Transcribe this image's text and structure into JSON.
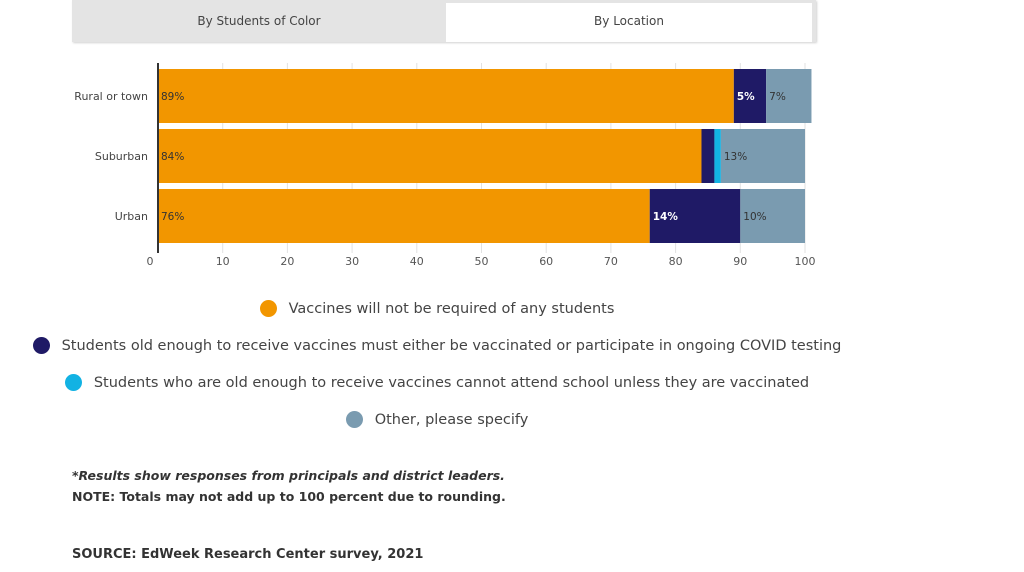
{
  "tabs": [
    {
      "label": "By Students of Color",
      "active": false
    },
    {
      "label": "By Location",
      "active": true
    }
  ],
  "chart_data": {
    "type": "bar",
    "orientation": "horizontal",
    "stacked": true,
    "categories": [
      "Rural or town",
      "Suburban",
      "Urban"
    ],
    "series": [
      {
        "name": "Vaccines will not be required of any students",
        "color": "#F29600",
        "values": [
          89,
          84,
          76
        ],
        "labels": [
          "89%",
          "84%",
          "76%"
        ]
      },
      {
        "name": "Students old enough to receive vaccines must either be vaccinated or participate in ongoing COVID testing",
        "color": "#1F1A66",
        "values": [
          5,
          2,
          14
        ],
        "labels": [
          "5%",
          "",
          "14%"
        ]
      },
      {
        "name": "Students who are old enough to receive vaccines cannot attend school unless they are vaccinated",
        "color": "#12B2E3",
        "values": [
          0,
          1,
          0
        ],
        "labels": [
          "",
          "",
          ""
        ]
      },
      {
        "name": "Other, please specify",
        "color": "#7A9BB0",
        "values": [
          7,
          13,
          10
        ],
        "labels": [
          "7%",
          "13%",
          "10%"
        ]
      }
    ],
    "xlim": [
      0,
      100
    ],
    "xticks": [
      "0",
      "10",
      "20",
      "30",
      "40",
      "50",
      "60",
      "70",
      "80",
      "90",
      "100"
    ],
    "grid": true,
    "legend_position": "bottom"
  },
  "notes": [
    "*Results show responses from principals and district leaders.",
    "NOTE: Totals may not add up to 100 percent due to rounding.",
    "SOURCE: EdWeek Research Center survey, 2021"
  ]
}
